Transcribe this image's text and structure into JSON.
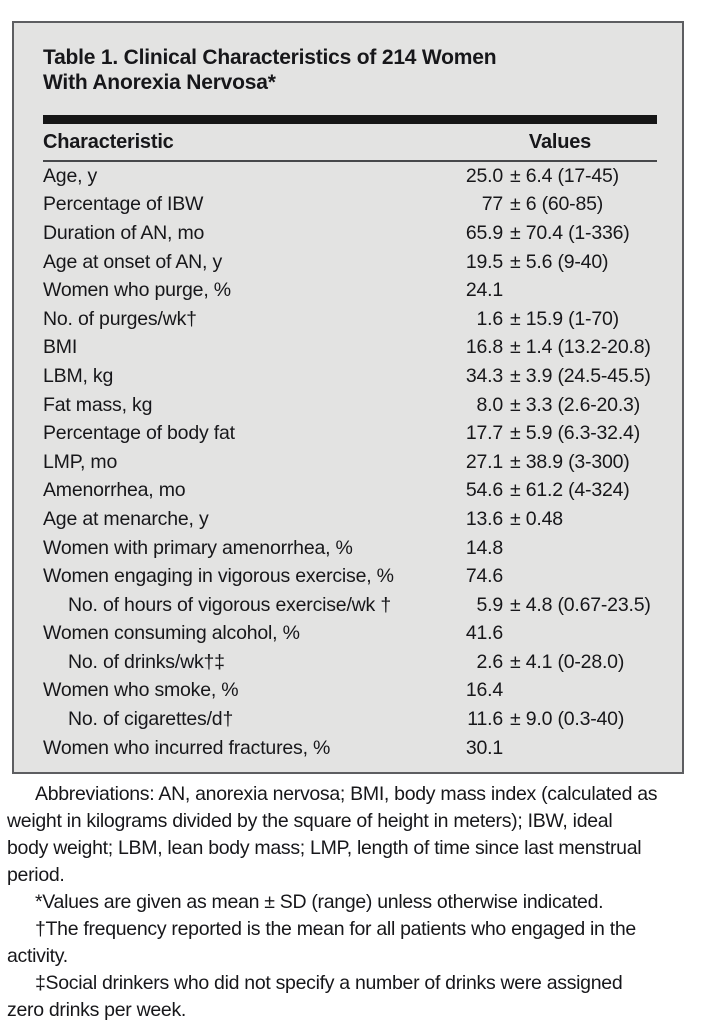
{
  "colors": {
    "page-bg": "#ffffff",
    "box-bg": "#e3e3e2",
    "box-border": "#5d5e61",
    "bar": "#161616",
    "rule": "#47484b",
    "text": "#17171a"
  },
  "table": {
    "title_line1": "Table 1. Clinical Characteristics of 214 Women",
    "title_line2": "With Anorexia Nervosa*",
    "columns": {
      "characteristic": "Characteristic",
      "values": "Values"
    },
    "rows": [
      {
        "label": "Age, y",
        "mean": "25.0",
        "sd_range": "± 6.4 (17-45)",
        "indent": false
      },
      {
        "label": "Percentage of IBW",
        "mean": "77",
        "sd_range": "± 6 (60-85)",
        "indent": false
      },
      {
        "label": "Duration of AN, mo",
        "mean": "65.9",
        "sd_range": "± 70.4 (1-336)",
        "indent": false
      },
      {
        "label": "Age at onset of AN, y",
        "mean": "19.5",
        "sd_range": "± 5.6 (9-40)",
        "indent": false
      },
      {
        "label": "Women who purge, %",
        "mean": "24.1",
        "sd_range": "",
        "indent": false
      },
      {
        "label": "No. of purges/wk†",
        "mean": "1.6",
        "sd_range": "± 15.9 (1-70)",
        "indent": false
      },
      {
        "label": "BMI",
        "mean": "16.8",
        "sd_range": "± 1.4 (13.2-20.8)",
        "indent": false
      },
      {
        "label": "LBM, kg",
        "mean": "34.3",
        "sd_range": "± 3.9 (24.5-45.5)",
        "indent": false
      },
      {
        "label": "Fat mass, kg",
        "mean": "8.0",
        "sd_range": "± 3.3 (2.6-20.3)",
        "indent": false
      },
      {
        "label": "Percentage of body fat",
        "mean": "17.7",
        "sd_range": "± 5.9 (6.3-32.4)",
        "indent": false
      },
      {
        "label": "LMP, mo",
        "mean": "27.1",
        "sd_range": "± 38.9 (3-300)",
        "indent": false
      },
      {
        "label": "Amenorrhea, mo",
        "mean": "54.6",
        "sd_range": "± 61.2 (4-324)",
        "indent": false
      },
      {
        "label": "Age at menarche, y",
        "mean": "13.6",
        "sd_range": "± 0.48",
        "indent": false
      },
      {
        "label": "Women with primary amenorrhea, %",
        "mean": "14.8",
        "sd_range": "",
        "indent": false
      },
      {
        "label": "Women engaging in vigorous exercise, %",
        "mean": "74.6",
        "sd_range": "",
        "indent": false
      },
      {
        "label": "No. of hours of vigorous exercise/wk †",
        "mean": "5.9",
        "sd_range": "± 4.8 (0.67-23.5)",
        "indent": true
      },
      {
        "label": "Women consuming alcohol, %",
        "mean": "41.6",
        "sd_range": "",
        "indent": false
      },
      {
        "label": "No. of drinks/wk†‡",
        "mean": "2.6",
        "sd_range": "± 4.1 (0-28.0)",
        "indent": true
      },
      {
        "label": "Women who smoke, %",
        "mean": "16.4",
        "sd_range": "",
        "indent": false
      },
      {
        "label": "No. of cigarettes/d†",
        "mean": "11.6",
        "sd_range": "± 9.0 (0.3-40)",
        "indent": true
      },
      {
        "label": "Women who incurred fractures, %",
        "mean": "30.1",
        "sd_range": "",
        "indent": false
      }
    ]
  },
  "footnotes": [
    {
      "lines": [
        "Abbreviations: AN, anorexia nervosa; BMI, body mass index (calculated as",
        "weight in kilograms divided by the square of height in meters); IBW, ideal",
        "body weight; LBM, lean body mass; LMP, length of time since last menstrual",
        "period."
      ]
    },
    {
      "lines": [
        "*Values are given as mean ± SD (range) unless otherwise indicated."
      ]
    },
    {
      "lines": [
        "†The frequency reported is the mean for all patients who engaged in the",
        "activity."
      ]
    },
    {
      "lines": [
        "‡Social drinkers who did not specify a number of drinks were assigned",
        "zero drinks per week."
      ]
    }
  ]
}
